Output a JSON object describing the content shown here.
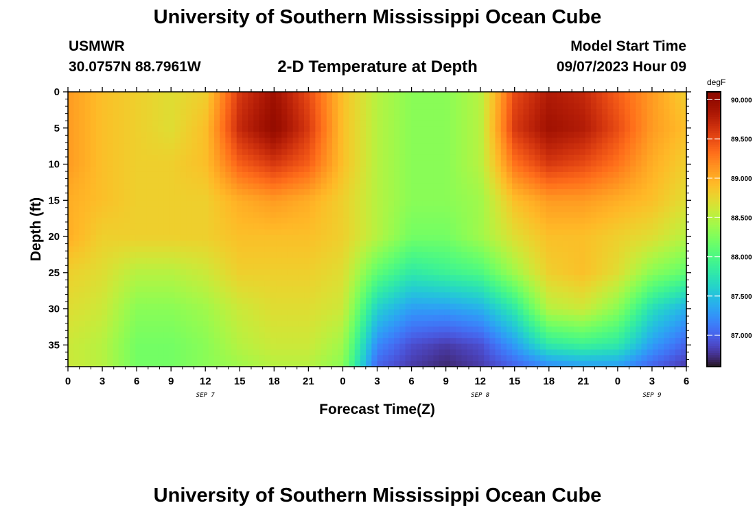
{
  "page": {
    "title": "University of Southern Mississippi Ocean Cube",
    "footer_title": "University of Southern Mississippi Ocean Cube",
    "station": "USMWR",
    "coordinates": "30.0757N  88.7961W",
    "plot_subtitle": "2-D Temperature at Depth",
    "model_start_label": "Model Start Time",
    "model_start_value": "09/07/2023 Hour 09"
  },
  "chart_data": {
    "type": "heatmap",
    "title": "2-D Temperature at Depth",
    "xlabel": "Forecast Time(Z)",
    "ylabel": "Depth (ft)",
    "x_range_hours": [
      0,
      54
    ],
    "y_range_ft": [
      0,
      38
    ],
    "x_ticks": [
      {
        "hour": 0,
        "label": "0"
      },
      {
        "hour": 3,
        "label": "3"
      },
      {
        "hour": 6,
        "label": "6"
      },
      {
        "hour": 9,
        "label": "9"
      },
      {
        "hour": 12,
        "label": "12"
      },
      {
        "hour": 15,
        "label": "15"
      },
      {
        "hour": 18,
        "label": "18"
      },
      {
        "hour": 21,
        "label": "21"
      },
      {
        "hour": 24,
        "label": "0"
      },
      {
        "hour": 27,
        "label": "3"
      },
      {
        "hour": 30,
        "label": "6"
      },
      {
        "hour": 33,
        "label": "9"
      },
      {
        "hour": 36,
        "label": "12"
      },
      {
        "hour": 39,
        "label": "15"
      },
      {
        "hour": 42,
        "label": "18"
      },
      {
        "hour": 45,
        "label": "21"
      },
      {
        "hour": 48,
        "label": "0"
      },
      {
        "hour": 51,
        "label": "3"
      },
      {
        "hour": 54,
        "label": "6"
      }
    ],
    "date_labels": [
      {
        "hour": 12,
        "label": "SEP 7"
      },
      {
        "hour": 36,
        "label": "SEP 8"
      },
      {
        "hour": 51,
        "label": "SEP 9"
      }
    ],
    "y_ticks": [
      0,
      5,
      10,
      15,
      20,
      25,
      30,
      35
    ],
    "colorbar": {
      "unit": "degF",
      "range": [
        86.6,
        90.1
      ],
      "ticks": [
        {
          "value": 87.0,
          "label": "87.000"
        },
        {
          "value": 87.5,
          "label": "87.500"
        },
        {
          "value": 88.0,
          "label": "88.000"
        },
        {
          "value": 88.5,
          "label": "88.500"
        },
        {
          "value": 89.0,
          "label": "89.000"
        },
        {
          "value": 89.5,
          "label": "89.500"
        },
        {
          "value": 90.0,
          "label": "90.000"
        }
      ],
      "colormap": "turbo"
    },
    "depths_ft": [
      0,
      5,
      10,
      15,
      20,
      25,
      30,
      35,
      38
    ],
    "times_h": [
      0,
      3,
      6,
      9,
      12,
      15,
      18,
      21,
      24,
      27,
      30,
      33,
      36,
      39,
      42,
      45,
      48,
      51,
      54
    ],
    "values_degF": [
      [
        89.1,
        88.9,
        88.8,
        88.7,
        88.8,
        89.6,
        89.9,
        89.5,
        88.9,
        88.5,
        88.3,
        88.3,
        88.5,
        89.5,
        89.8,
        89.7,
        89.4,
        89.1,
        88.8
      ],
      [
        89.1,
        88.9,
        88.8,
        88.7,
        88.9,
        89.7,
        90.0,
        89.6,
        88.9,
        88.5,
        88.3,
        88.3,
        88.5,
        89.6,
        89.9,
        89.8,
        89.5,
        89.1,
        88.9
      ],
      [
        89.1,
        88.9,
        88.8,
        88.8,
        88.9,
        89.4,
        89.6,
        89.4,
        88.9,
        88.5,
        88.3,
        88.3,
        88.5,
        89.3,
        89.6,
        89.5,
        89.3,
        89.0,
        88.8
      ],
      [
        89.0,
        88.9,
        88.8,
        88.8,
        88.8,
        89.0,
        89.1,
        89.0,
        88.8,
        88.5,
        88.3,
        88.3,
        88.4,
        88.9,
        89.1,
        89.1,
        89.0,
        88.9,
        88.7
      ],
      [
        89.0,
        88.8,
        88.8,
        88.8,
        88.8,
        88.9,
        88.9,
        88.9,
        88.8,
        88.5,
        88.2,
        88.2,
        88.4,
        88.7,
        88.9,
        88.9,
        88.8,
        88.7,
        88.5
      ],
      [
        88.8,
        88.7,
        88.5,
        88.5,
        88.6,
        88.8,
        88.8,
        88.8,
        88.7,
        88.1,
        87.8,
        87.9,
        88.0,
        88.4,
        88.8,
        88.9,
        88.7,
        88.3,
        88.1
      ],
      [
        88.7,
        88.6,
        88.3,
        88.3,
        88.4,
        88.6,
        88.7,
        88.7,
        88.6,
        87.6,
        87.3,
        87.3,
        87.4,
        87.8,
        88.5,
        88.6,
        88.3,
        87.7,
        87.4
      ],
      [
        88.6,
        88.5,
        88.2,
        88.2,
        88.3,
        88.5,
        88.6,
        88.6,
        88.4,
        87.2,
        86.9,
        86.8,
        86.9,
        87.3,
        87.8,
        87.9,
        87.8,
        87.3,
        87.0
      ],
      [
        88.6,
        88.5,
        88.2,
        88.2,
        88.3,
        88.4,
        88.5,
        88.5,
        88.3,
        87.0,
        86.8,
        86.7,
        86.8,
        87.0,
        87.2,
        87.3,
        87.3,
        87.0,
        86.8
      ]
    ]
  }
}
